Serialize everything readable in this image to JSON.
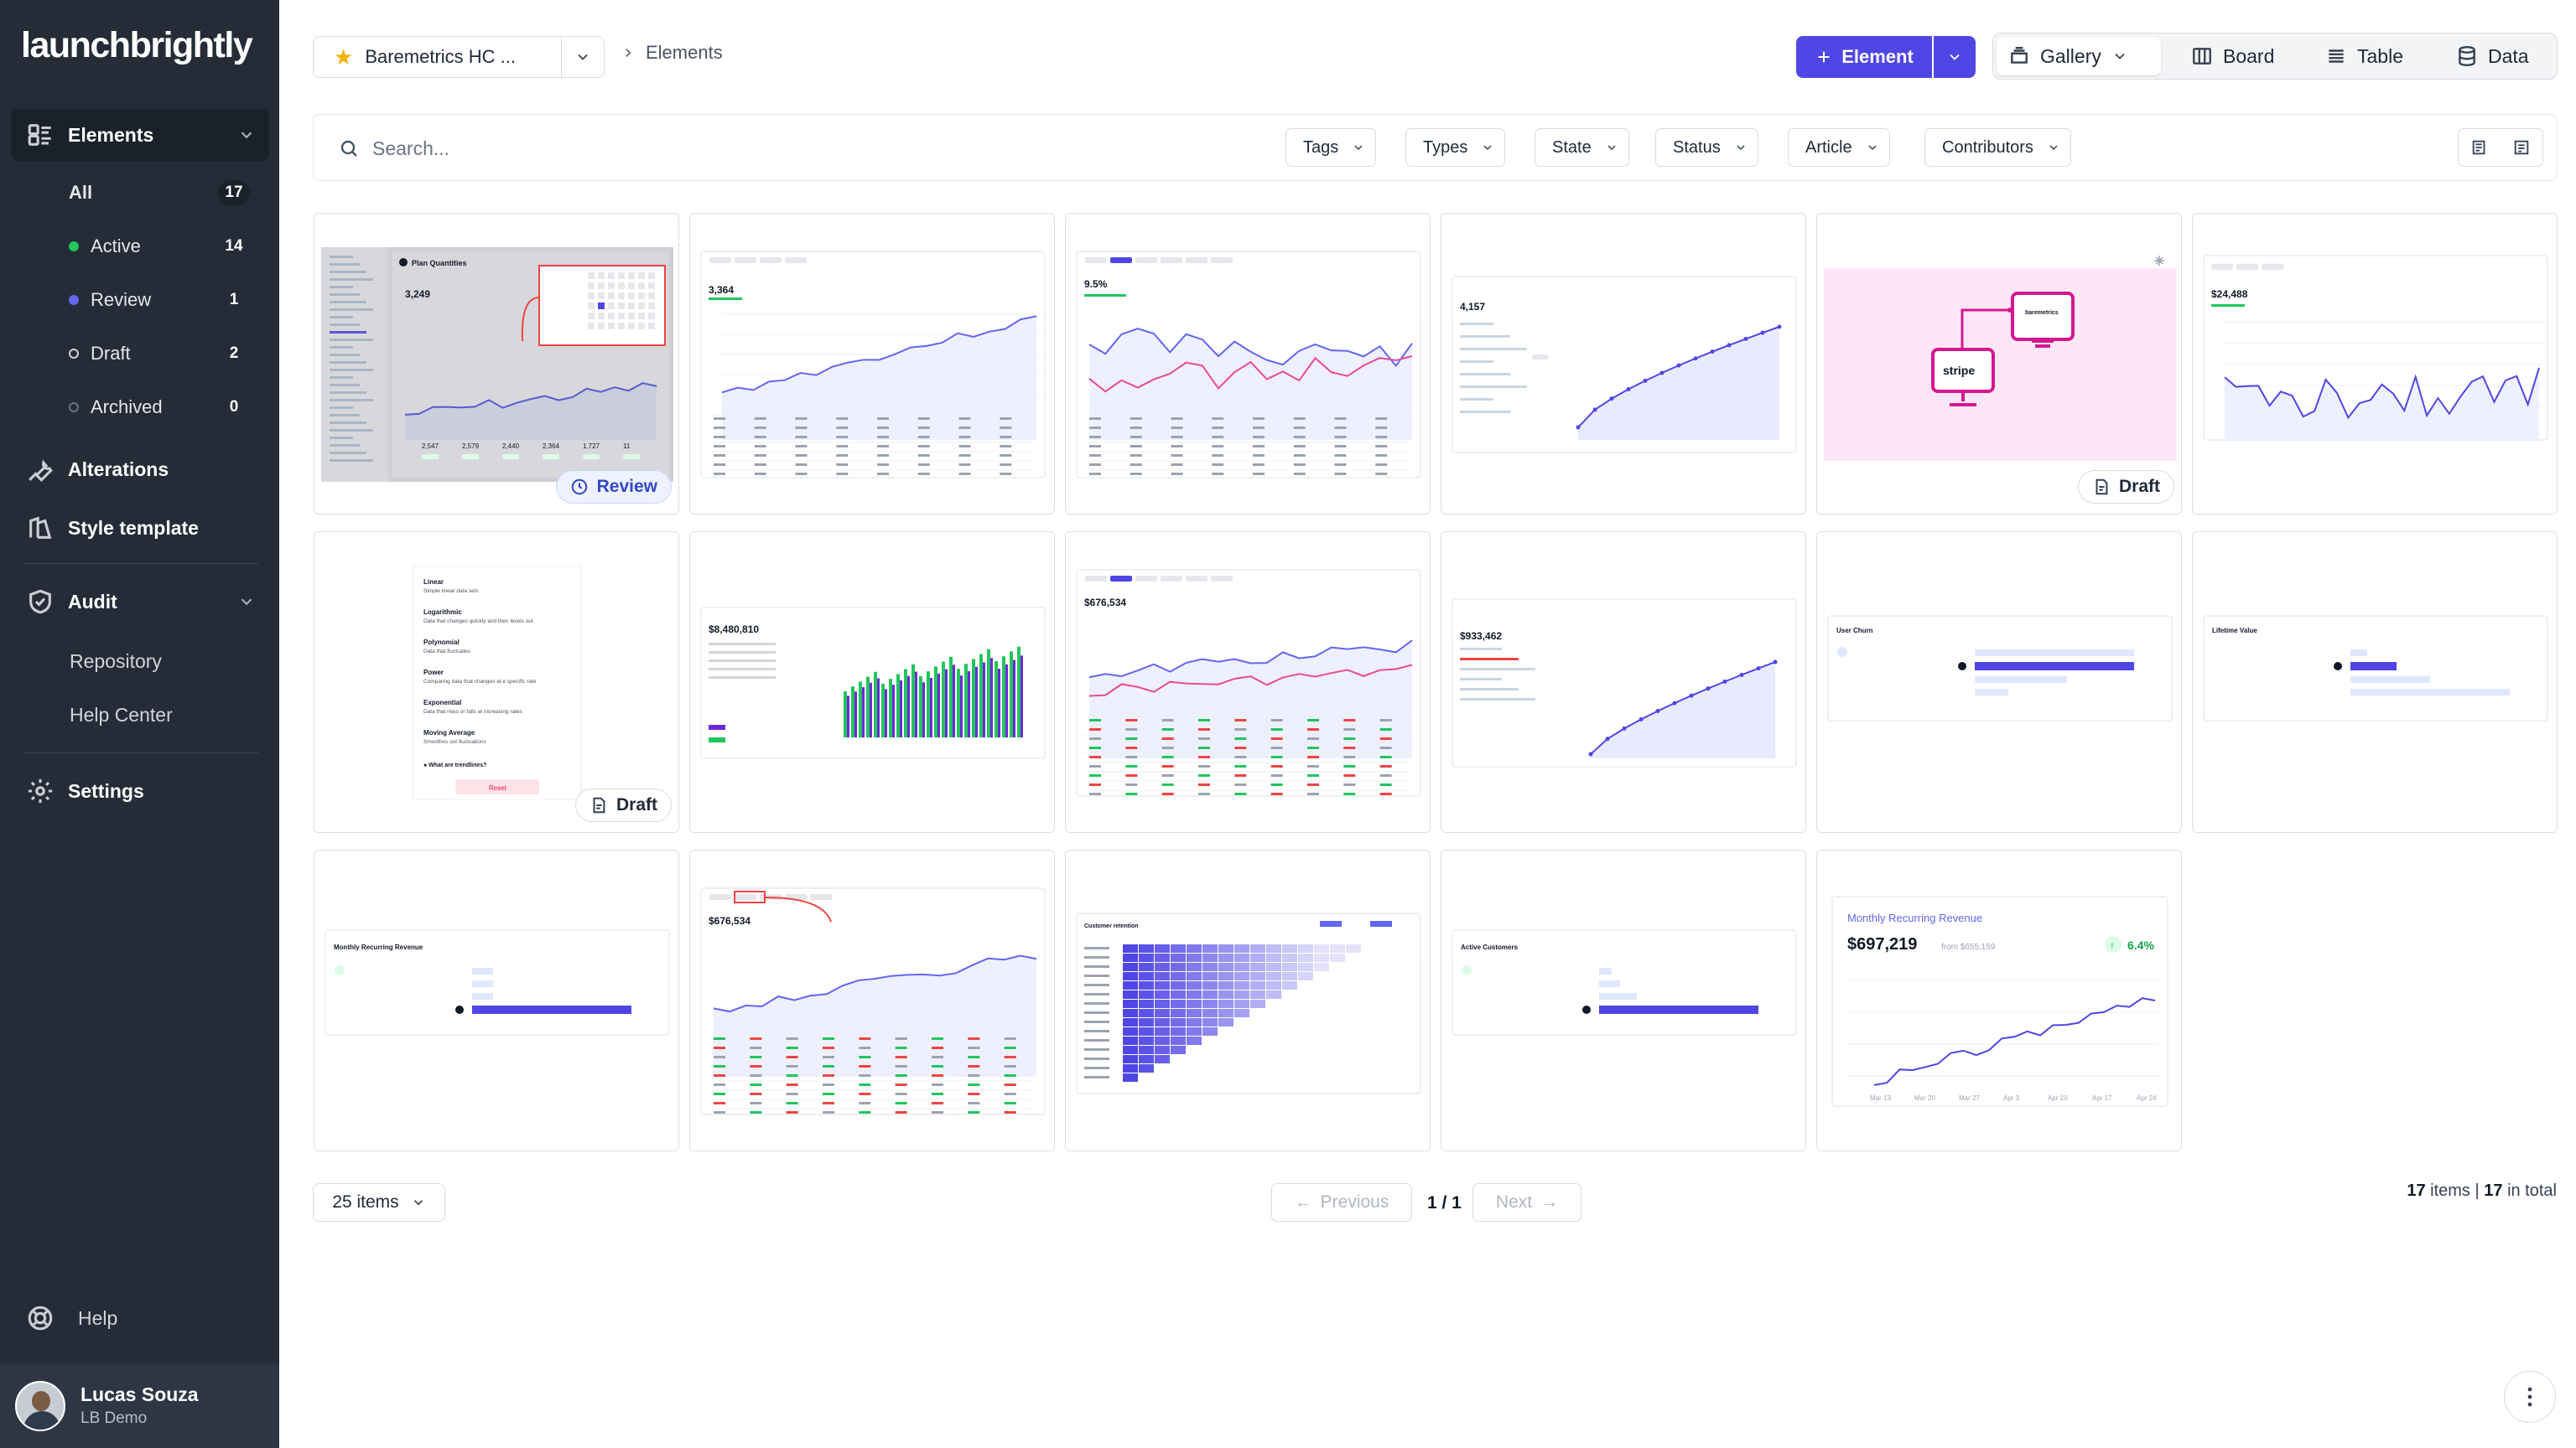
{
  "app": {
    "logo": "launchbrightly"
  },
  "sidebar": {
    "elements": {
      "label": "Elements"
    },
    "filters": [
      {
        "label": "All",
        "count": "17",
        "color": ""
      },
      {
        "label": "Active",
        "count": "14",
        "color": "#22c55e"
      },
      {
        "label": "Review",
        "count": "1",
        "color": "#6366f1"
      },
      {
        "label": "Draft",
        "count": "2",
        "color": "hollow"
      },
      {
        "label": "Archived",
        "count": "0",
        "color": "hollow-dim"
      }
    ],
    "alterations": "Alterations",
    "style_template": "Style template",
    "audit": "Audit",
    "repository": "Repository",
    "help_center": "Help Center",
    "settings": "Settings",
    "help": "Help",
    "user": {
      "name": "Lucas Souza",
      "org": "LB Demo"
    }
  },
  "topbar": {
    "project": "Baremetrics HC ...",
    "breadcrumb": "Elements",
    "new_element": "Element",
    "views": [
      "Gallery",
      "Board",
      "Table",
      "Data"
    ]
  },
  "search": {
    "placeholder": "Search..."
  },
  "filters": [
    "Tags",
    "Types",
    "State",
    "Status",
    "Article",
    "Contributors"
  ],
  "cards": [
    {
      "thumb": "app-screen",
      "badge": "Review"
    },
    {
      "thumb": "line-table",
      "badge": ""
    },
    {
      "thumb": "line-pink",
      "badge": ""
    },
    {
      "thumb": "area-dots",
      "badge": ""
    },
    {
      "thumb": "stripe",
      "badge": "Draft"
    },
    {
      "thumb": "spiky",
      "badge": ""
    },
    {
      "thumb": "menu",
      "badge": "Draft"
    },
    {
      "thumb": "bars",
      "badge": ""
    },
    {
      "thumb": "line-pink-table",
      "badge": ""
    },
    {
      "thumb": "area-dots-2",
      "badge": ""
    },
    {
      "thumb": "churn",
      "badge": ""
    },
    {
      "thumb": "lifetime",
      "badge": ""
    },
    {
      "thumb": "mrr-bars",
      "badge": ""
    },
    {
      "thumb": "line-table-red",
      "badge": ""
    },
    {
      "thumb": "heatmap",
      "badge": ""
    },
    {
      "thumb": "active-customers",
      "badge": ""
    },
    {
      "thumb": "mrr",
      "badge": ""
    }
  ],
  "thumb_text": {
    "mrr_title": "Monthly Recurring Revenue",
    "mrr_value": "$697,219",
    "mrr_from": "from $655,159",
    "mrr_change": "6.4%",
    "mrr_months": [
      "Mar 13",
      "Mar 20",
      "Mar 27",
      "Apr 3",
      "Apr 10",
      "Apr 17",
      "Apr 24"
    ],
    "churn_title": "User Churn",
    "lifetime_title": "Lifetime Value",
    "mrr_bars_title": "Monthly Recurring Revenue",
    "active_title": "Active Customers",
    "retention_title": "Customer retention",
    "stripe_label": "stripe",
    "baremetrics_label": "baremetrics",
    "menu_items": [
      {
        "t": "Linear",
        "d": "Simple linear data sets"
      },
      {
        "t": "Logarithmic",
        "d": "Data that changes quickly and then levels out"
      },
      {
        "t": "Polynomial",
        "d": "Data that fluctuates"
      },
      {
        "t": "Power",
        "d": "Comparing data that changes at a specific rate"
      },
      {
        "t": "Exponential",
        "d": "Data that rises or falls at increasing rates"
      },
      {
        "t": "Moving Average",
        "d": "Smoothes out fluctuations"
      }
    ],
    "menu_question": "What are trendlines?",
    "menu_reset": "Reset",
    "v1": "3,364",
    "v2": "9.5%",
    "v3": "4,157",
    "v4": "$24,488",
    "v5": "$8,480,810",
    "v6": "$676,534",
    "v7": "$933,462",
    "v8": "$676,534",
    "app_title": "Plan Quantities",
    "app_value": "3,249"
  },
  "pagination": {
    "per_page": "25 items",
    "previous": "Previous",
    "page": "1 / 1",
    "next": "Next",
    "items_count": "17",
    "items_label": "items",
    "total_count": "17",
    "total_label": "in total"
  }
}
